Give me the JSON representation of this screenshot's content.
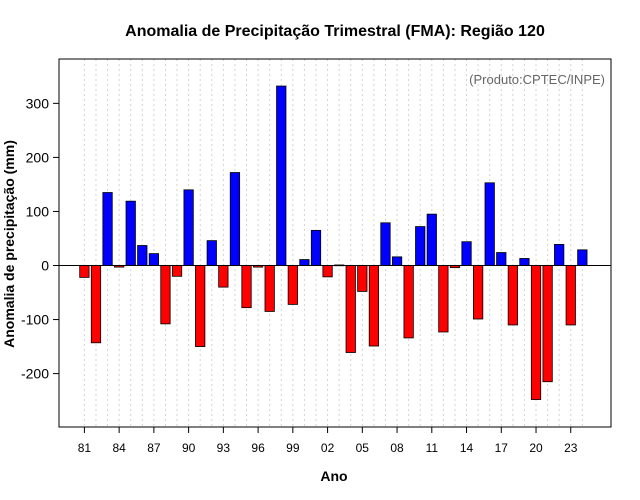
{
  "chart_data": {
    "type": "bar",
    "title": "Anomalia de Precipitação Trimestral (FMA): Região 120",
    "source": "(Produto:CPTEC/INPE)",
    "xlabel": "Ano",
    "ylabel": "Anomalia de precipitação (mm)",
    "ylim": [
      -300,
      350
    ],
    "yticks": [
      -200,
      -100,
      0,
      100,
      200,
      300
    ],
    "xtick_labels": [
      "81",
      "84",
      "87",
      "90",
      "93",
      "96",
      "99",
      "02",
      "05",
      "08",
      "11",
      "14",
      "17",
      "20",
      "23"
    ],
    "categories": [
      "1981",
      "1982",
      "1983",
      "1984",
      "1985",
      "1986",
      "1987",
      "1988",
      "1989",
      "1990",
      "1991",
      "1992",
      "1993",
      "1994",
      "1995",
      "1996",
      "1997",
      "1998",
      "1999",
      "2000",
      "2001",
      "2002",
      "2003",
      "2004",
      "2005",
      "2006",
      "2007",
      "2008",
      "2009",
      "2010",
      "2011",
      "2012",
      "2013",
      "2014",
      "2015",
      "2016",
      "2017",
      "2018",
      "2019",
      "2020",
      "2021",
      "2022",
      "2023",
      "2024"
    ],
    "values": [
      -22,
      -143,
      135,
      -3,
      119,
      37,
      22,
      -108,
      -20,
      140,
      -150,
      46,
      -40,
      172,
      -78,
      -3,
      -85,
      332,
      -72,
      11,
      65,
      -21,
      1,
      -161,
      -48,
      -149,
      79,
      16,
      -134,
      72,
      95,
      -123,
      -4,
      44,
      -99,
      153,
      24,
      -110,
      13,
      -248,
      -215,
      39,
      -110,
      29
    ],
    "colors": {
      "positive": "#0000ff",
      "negative": "#ff0000",
      "zero_line": "#000000",
      "grid": "#d3d3d3"
    },
    "grid": true
  }
}
